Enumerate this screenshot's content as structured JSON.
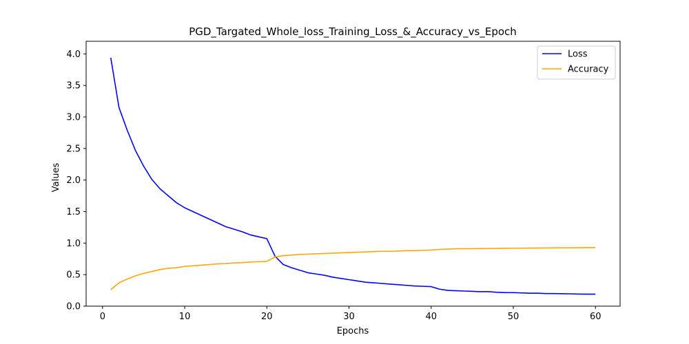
{
  "chart_data": {
    "type": "line",
    "title": "PGD_Targated_Whole_loss_Training_Loss_&_Accuracy_vs_Epoch",
    "xlabel": "Epochs",
    "ylabel": "Values",
    "xlim": [
      -2,
      63
    ],
    "ylim": [
      0,
      4.2
    ],
    "xticks": [
      0,
      10,
      20,
      30,
      40,
      50,
      60
    ],
    "yticks": [
      0.0,
      0.5,
      1.0,
      1.5,
      2.0,
      2.5,
      3.0,
      3.5,
      4.0
    ],
    "grid": false,
    "legend": "top-right",
    "x": [
      1,
      2,
      3,
      4,
      5,
      6,
      7,
      8,
      9,
      10,
      11,
      12,
      13,
      14,
      15,
      16,
      17,
      18,
      19,
      20,
      21,
      22,
      23,
      24,
      25,
      26,
      27,
      28,
      29,
      30,
      31,
      32,
      33,
      34,
      35,
      36,
      37,
      38,
      39,
      40,
      41,
      42,
      43,
      44,
      45,
      46,
      47,
      48,
      49,
      50,
      51,
      52,
      53,
      54,
      55,
      56,
      57,
      58,
      59,
      60
    ],
    "series": [
      {
        "name": "Loss",
        "color": "#0000ff",
        "values": [
          3.94,
          3.15,
          2.79,
          2.47,
          2.22,
          2.01,
          1.86,
          1.75,
          1.64,
          1.56,
          1.5,
          1.44,
          1.38,
          1.32,
          1.26,
          1.22,
          1.18,
          1.13,
          1.1,
          1.07,
          0.79,
          0.66,
          0.61,
          0.57,
          0.53,
          0.51,
          0.49,
          0.46,
          0.44,
          0.42,
          0.4,
          0.38,
          0.37,
          0.36,
          0.35,
          0.34,
          0.33,
          0.32,
          0.315,
          0.31,
          0.27,
          0.25,
          0.245,
          0.24,
          0.235,
          0.23,
          0.23,
          0.22,
          0.215,
          0.215,
          0.21,
          0.205,
          0.205,
          0.2,
          0.2,
          0.197,
          0.195,
          0.192,
          0.19,
          0.19
        ]
      },
      {
        "name": "Accuracy",
        "color": "#ffa500",
        "values": [
          0.26,
          0.37,
          0.43,
          0.48,
          0.52,
          0.55,
          0.58,
          0.6,
          0.61,
          0.63,
          0.64,
          0.65,
          0.66,
          0.67,
          0.675,
          0.685,
          0.69,
          0.7,
          0.705,
          0.71,
          0.78,
          0.8,
          0.81,
          0.82,
          0.825,
          0.83,
          0.835,
          0.84,
          0.845,
          0.85,
          0.855,
          0.86,
          0.865,
          0.87,
          0.87,
          0.875,
          0.88,
          0.88,
          0.885,
          0.89,
          0.9,
          0.905,
          0.91,
          0.91,
          0.912,
          0.913,
          0.915,
          0.916,
          0.918,
          0.919,
          0.92,
          0.921,
          0.922,
          0.923,
          0.924,
          0.925,
          0.926,
          0.927,
          0.928,
          0.929
        ]
      }
    ]
  }
}
